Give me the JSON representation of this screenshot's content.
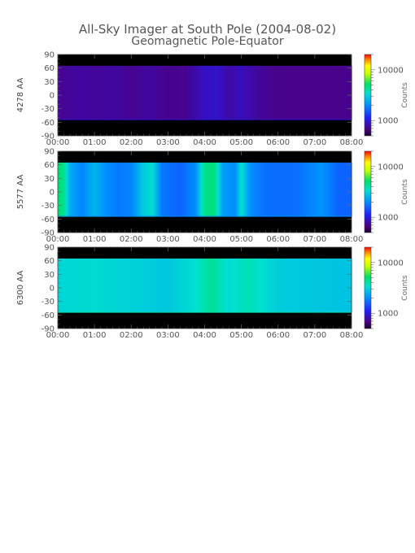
{
  "title": "All-Sky Imager at South Pole (2004-08-02)",
  "subtitle": "Geomagnetic Pole-Equator",
  "colors": {
    "text": "#555555",
    "background": "#ffffff",
    "plot_border": "#444444",
    "no_data": "#000000"
  },
  "chart_data": [
    {
      "type": "heatmap",
      "ylabel": "4278 AA",
      "x_ticks": [
        "00:00",
        "01:00",
        "02:00",
        "03:00",
        "04:00",
        "05:00",
        "06:00",
        "07:00",
        "08:00"
      ],
      "y_ticks": [
        90,
        60,
        30,
        0,
        -30,
        -60,
        -90
      ],
      "xlim": [
        "00:00",
        "08:00"
      ],
      "ylim": [
        -90,
        90
      ],
      "data_ylim": [
        -55,
        65
      ],
      "colorbar": {
        "label": "Counts",
        "scale": "log",
        "ticks": [
          1000,
          10000
        ],
        "range": [
          500,
          20000
        ]
      },
      "base_counts": 700,
      "time_profile": [
        {
          "t": "00:00",
          "counts": 720
        },
        {
          "t": "00:30",
          "counts": 760
        },
        {
          "t": "01:00",
          "counts": 740
        },
        {
          "t": "01:30",
          "counts": 760
        },
        {
          "t": "02:00",
          "counts": 720
        },
        {
          "t": "02:30",
          "counts": 760
        },
        {
          "t": "03:00",
          "counts": 700
        },
        {
          "t": "03:30",
          "counts": 720
        },
        {
          "t": "03:50",
          "counts": 820
        },
        {
          "t": "04:00",
          "counts": 880
        },
        {
          "t": "04:20",
          "counts": 900
        },
        {
          "t": "04:40",
          "counts": 780
        },
        {
          "t": "05:00",
          "counts": 850
        },
        {
          "t": "05:30",
          "counts": 740
        },
        {
          "t": "06:00",
          "counts": 700
        },
        {
          "t": "07:00",
          "counts": 700
        },
        {
          "t": "08:00",
          "counts": 700
        }
      ]
    },
    {
      "type": "heatmap",
      "ylabel": "5577 AA",
      "x_ticks": [
        "00:00",
        "01:00",
        "02:00",
        "03:00",
        "04:00",
        "05:00",
        "06:00",
        "07:00",
        "08:00"
      ],
      "y_ticks": [
        90,
        60,
        30,
        0,
        -30,
        -60,
        -90
      ],
      "xlim": [
        "00:00",
        "08:00"
      ],
      "ylim": [
        -90,
        90
      ],
      "data_ylim": [
        -55,
        65
      ],
      "colorbar": {
        "label": "Counts",
        "scale": "log",
        "ticks": [
          1000,
          10000
        ],
        "range": [
          500,
          20000
        ]
      },
      "base_counts": 1500,
      "time_profile": [
        {
          "t": "00:00",
          "counts": 5000
        },
        {
          "t": "00:10",
          "counts": 4500
        },
        {
          "t": "00:20",
          "counts": 2400
        },
        {
          "t": "00:40",
          "counts": 1900
        },
        {
          "t": "01:00",
          "counts": 2600
        },
        {
          "t": "01:20",
          "counts": 2000
        },
        {
          "t": "01:40",
          "counts": 1800
        },
        {
          "t": "02:00",
          "counts": 1900
        },
        {
          "t": "02:20",
          "counts": 3000
        },
        {
          "t": "02:35",
          "counts": 3300
        },
        {
          "t": "02:50",
          "counts": 1800
        },
        {
          "t": "03:20",
          "counts": 1600
        },
        {
          "t": "03:45",
          "counts": 2000
        },
        {
          "t": "04:00",
          "counts": 4500
        },
        {
          "t": "04:15",
          "counts": 4800
        },
        {
          "t": "04:30",
          "counts": 2200
        },
        {
          "t": "04:50",
          "counts": 2000
        },
        {
          "t": "05:00",
          "counts": 3500
        },
        {
          "t": "05:15",
          "counts": 2000
        },
        {
          "t": "05:40",
          "counts": 1700
        },
        {
          "t": "06:30",
          "counts": 1700
        },
        {
          "t": "07:10",
          "counts": 2100
        },
        {
          "t": "07:40",
          "counts": 1600
        },
        {
          "t": "08:00",
          "counts": 1600
        }
      ]
    },
    {
      "type": "heatmap",
      "ylabel": "6300 AA",
      "x_ticks": [
        "00:00",
        "01:00",
        "02:00",
        "03:00",
        "04:00",
        "05:00",
        "06:00",
        "07:00",
        "08:00"
      ],
      "y_ticks": [
        90,
        60,
        30,
        0,
        -30,
        -60,
        -90
      ],
      "xlim": [
        "00:00",
        "08:00"
      ],
      "ylim": [
        -90,
        90
      ],
      "data_ylim": [
        -55,
        65
      ],
      "colorbar": {
        "label": "Counts",
        "scale": "log",
        "ticks": [
          1000,
          10000
        ],
        "range": [
          500,
          20000
        ]
      },
      "base_counts": 3000,
      "time_profile": [
        {
          "t": "00:00",
          "counts": 3200
        },
        {
          "t": "01:00",
          "counts": 3300
        },
        {
          "t": "02:00",
          "counts": 3100
        },
        {
          "t": "03:00",
          "counts": 2900
        },
        {
          "t": "03:45",
          "counts": 3400
        },
        {
          "t": "04:10",
          "counts": 4300
        },
        {
          "t": "04:40",
          "counts": 3300
        },
        {
          "t": "05:10",
          "counts": 3800
        },
        {
          "t": "06:00",
          "counts": 3000
        },
        {
          "t": "07:00",
          "counts": 2900
        },
        {
          "t": "08:00",
          "counts": 2800
        }
      ]
    }
  ]
}
